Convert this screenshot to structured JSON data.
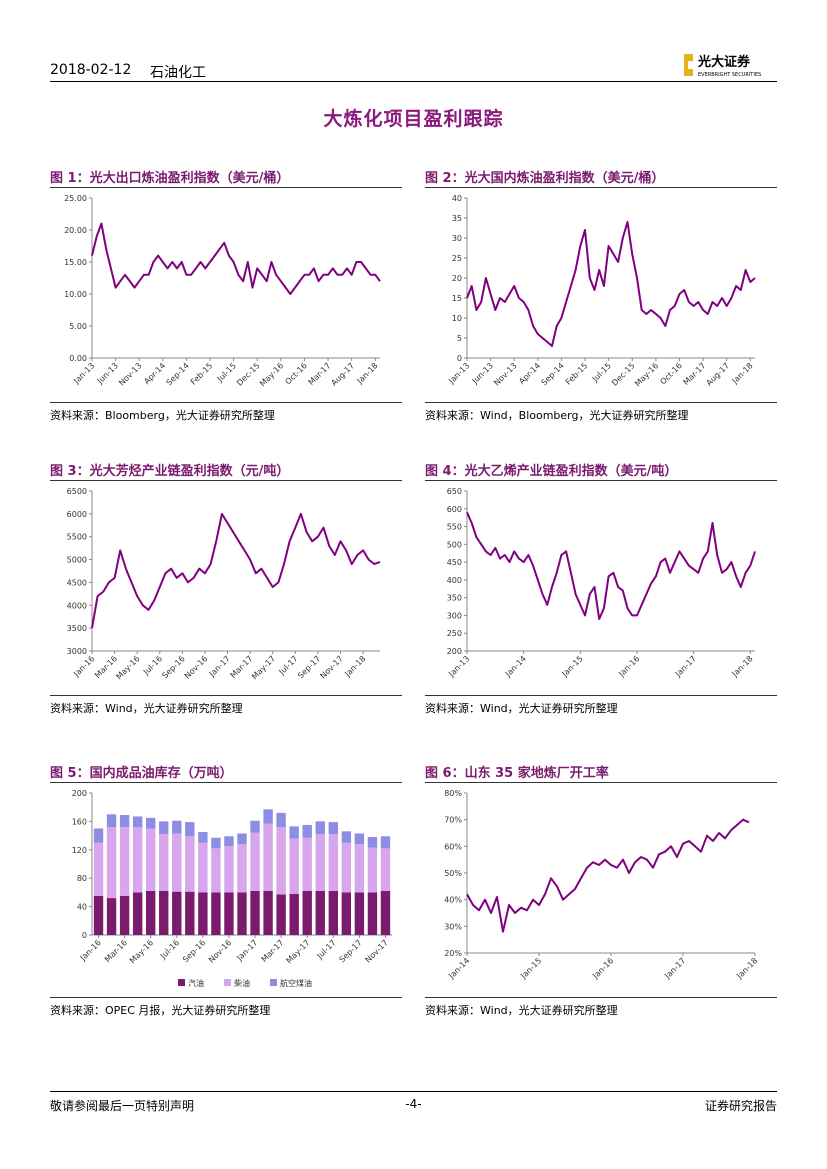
{
  "header": {
    "date": "2018-02-12",
    "sector": "石油化工",
    "logo_name": "光大证券",
    "logo_en": "EVERBRIGHT SECURITIES"
  },
  "title": "大炼化项目盈利跟踪",
  "figures": [
    {
      "caption": "图 1：光大出口炼油盈利指数（美元/桶）",
      "source": "资料来源：Bloomberg，光大证券研究所整理"
    },
    {
      "caption": "图 2：光大国内炼油盈利指数（美元/桶）",
      "source": "资料来源：Wind，Bloomberg，光大证券研究所整理"
    },
    {
      "caption": "图 3：光大芳烃产业链盈利指数（元/吨）",
      "source": "资料来源：Wind，光大证券研究所整理"
    },
    {
      "caption": "图 4：光大乙烯产业链盈利指数（美元/吨）",
      "source": "资料来源：Wind，光大证券研究所整理"
    },
    {
      "caption": "图 5：国内成品油库存（万吨）",
      "source": "资料来源：OPEC 月报，光大证券研究所整理"
    },
    {
      "caption": "图 6：山东 35 家地炼厂开工率",
      "source": "资料来源：Wind，光大证券研究所整理"
    }
  ],
  "chart_data": [
    {
      "type": "line",
      "color": "#800080",
      "categories": [
        "Jan-13",
        null,
        null,
        null,
        null,
        "Jun-13",
        null,
        null,
        null,
        null,
        "Nov-13",
        null,
        null,
        null,
        null,
        "Apr-14",
        null,
        null,
        null,
        null,
        "Sep-14",
        null,
        null,
        null,
        null,
        "Feb-15",
        null,
        null,
        null,
        null,
        "Jul-15",
        null,
        null,
        null,
        null,
        "Dec-15",
        null,
        null,
        null,
        null,
        "May-16",
        null,
        null,
        null,
        null,
        "Oct-16",
        null,
        null,
        null,
        null,
        "Mar-17",
        null,
        null,
        null,
        null,
        "Aug-17",
        null,
        null,
        null,
        null,
        "Jan-18",
        null
      ],
      "values": [
        16,
        19,
        21,
        17,
        14,
        11,
        12,
        13,
        12,
        11,
        12,
        13,
        13,
        15,
        16,
        15,
        14,
        15,
        14,
        15,
        13,
        13,
        14,
        15,
        14,
        15,
        16,
        17,
        18,
        16,
        15,
        13,
        12,
        15,
        11,
        14,
        13,
        12,
        15,
        13,
        12,
        11,
        10,
        11,
        12,
        13,
        13,
        14,
        12,
        13,
        13,
        14,
        13,
        13,
        14,
        13,
        15,
        15,
        14,
        13,
        13,
        12
      ],
      "ylim": [
        0,
        25
      ],
      "yticks": [
        {
          "value": 0,
          "label": "0.00"
        },
        {
          "value": 5,
          "label": "5.00"
        },
        {
          "value": 10,
          "label": "10.00"
        },
        {
          "value": 15,
          "label": "15.00"
        },
        {
          "value": 20,
          "label": "20.00"
        },
        {
          "value": 25,
          "label": "25.00"
        }
      ]
    },
    {
      "type": "line",
      "color": "#800080",
      "categories": [
        "Jan-13",
        null,
        null,
        null,
        null,
        "Jun-13",
        null,
        null,
        null,
        null,
        "Nov-13",
        null,
        null,
        null,
        null,
        "Apr-14",
        null,
        null,
        null,
        null,
        "Sep-14",
        null,
        null,
        null,
        null,
        "Feb-15",
        null,
        null,
        null,
        null,
        "Jul-15",
        null,
        null,
        null,
        null,
        "Dec-15",
        null,
        null,
        null,
        null,
        "May-16",
        null,
        null,
        null,
        null,
        "Oct-16",
        null,
        null,
        null,
        null,
        "Mar-17",
        null,
        null,
        null,
        null,
        "Aug-17",
        null,
        null,
        null,
        null,
        "Jan-18",
        null
      ],
      "values": [
        15,
        18,
        12,
        14,
        20,
        16,
        12,
        15,
        14,
        16,
        18,
        15,
        14,
        12,
        8,
        6,
        5,
        4,
        3,
        8,
        10,
        14,
        18,
        22,
        28,
        32,
        20,
        17,
        22,
        18,
        28,
        26,
        24,
        30,
        34,
        26,
        20,
        12,
        11,
        12,
        11,
        10,
        8,
        12,
        13,
        16,
        17,
        14,
        13,
        14,
        12,
        11,
        14,
        13,
        15,
        13,
        15,
        18,
        17,
        22,
        19,
        20
      ],
      "ylim": [
        0,
        40
      ],
      "yticks": [
        0,
        5,
        10,
        15,
        20,
        25,
        30,
        35,
        40
      ]
    },
    {
      "type": "line",
      "color": "#800080",
      "categories": [
        "Jan-16",
        null,
        null,
        null,
        "Mar-16",
        null,
        null,
        null,
        "May-16",
        null,
        null,
        null,
        "Jul-16",
        null,
        null,
        null,
        "Sep-16",
        null,
        null,
        null,
        "Nov-16",
        null,
        null,
        null,
        "Jan-17",
        null,
        null,
        null,
        "Mar-17",
        null,
        null,
        null,
        "May-17",
        null,
        null,
        null,
        "Jul-17",
        null,
        null,
        null,
        "Sep-17",
        null,
        null,
        null,
        "Nov-17",
        null,
        null,
        null,
        "Jan-18",
        null,
        null,
        null
      ],
      "values": [
        3500,
        4200,
        4300,
        4500,
        4600,
        5200,
        4800,
        4500,
        4200,
        4000,
        3900,
        4100,
        4400,
        4700,
        4800,
        4600,
        4700,
        4500,
        4600,
        4800,
        4700,
        4900,
        5400,
        6000,
        5800,
        5600,
        5400,
        5200,
        5000,
        4700,
        4800,
        4600,
        4400,
        4500,
        4900,
        5400,
        5700,
        6000,
        5600,
        5400,
        5500,
        5700,
        5300,
        5100,
        5400,
        5200,
        4900,
        5100,
        5200,
        5000,
        4900,
        4950
      ],
      "ylim": [
        3000,
        6500
      ],
      "yticks": [
        3000,
        3500,
        4000,
        4500,
        5000,
        5500,
        6000,
        6500
      ]
    },
    {
      "type": "line",
      "color": "#800080",
      "categories": [
        "Jan-13",
        null,
        null,
        null,
        null,
        null,
        null,
        null,
        null,
        null,
        null,
        null,
        "Jan-14",
        null,
        null,
        null,
        null,
        null,
        null,
        null,
        null,
        null,
        null,
        null,
        "Jan-15",
        null,
        null,
        null,
        null,
        null,
        null,
        null,
        null,
        null,
        null,
        null,
        "Jan-16",
        null,
        null,
        null,
        null,
        null,
        null,
        null,
        null,
        null,
        null,
        null,
        "Jan-17",
        null,
        null,
        null,
        null,
        null,
        null,
        null,
        null,
        null,
        null,
        null,
        "Jan-18",
        null
      ],
      "values": [
        590,
        560,
        520,
        500,
        480,
        470,
        490,
        460,
        470,
        450,
        480,
        460,
        450,
        470,
        440,
        400,
        360,
        330,
        380,
        420,
        470,
        480,
        420,
        360,
        330,
        300,
        360,
        380,
        290,
        320,
        410,
        420,
        380,
        370,
        320,
        300,
        300,
        330,
        360,
        390,
        410,
        450,
        460,
        420,
        450,
        480,
        460,
        440,
        430,
        420,
        460,
        480,
        560,
        470,
        420,
        430,
        450,
        410,
        380,
        420,
        440,
        480
      ],
      "ylim": [
        200,
        650
      ],
      "yticks": [
        200,
        250,
        300,
        350,
        400,
        450,
        500,
        550,
        600,
        650
      ]
    },
    {
      "type": "stacked_bar",
      "categories": [
        "Jan-16",
        null,
        "Mar-16",
        null,
        "May-16",
        null,
        "Jul-16",
        null,
        "Sep-16",
        null,
        "Nov-16",
        null,
        "Jan-17",
        null,
        "Mar-17",
        null,
        "May-17",
        null,
        "Jul-17",
        null,
        "Sep-17",
        null,
        "Nov-17"
      ],
      "series": [
        {
          "name": "汽油",
          "color": "#7b1b6e",
          "values": [
            55,
            52,
            55,
            60,
            62,
            62,
            61,
            61,
            60,
            60,
            60,
            60,
            62,
            62,
            57,
            58,
            62,
            62,
            62,
            60,
            60,
            60,
            62
          ]
        },
        {
          "name": "柴油",
          "color": "#d7a6ec",
          "values": [
            75,
            100,
            97,
            92,
            88,
            80,
            82,
            78,
            70,
            62,
            65,
            68,
            82,
            95,
            95,
            78,
            75,
            80,
            80,
            70,
            68,
            63,
            60
          ]
        },
        {
          "name": "航空煤油",
          "color": "#8e8de6",
          "values": [
            20,
            18,
            17,
            15,
            15,
            18,
            18,
            20,
            15,
            15,
            14,
            15,
            17,
            20,
            20,
            17,
            18,
            18,
            17,
            16,
            15,
            15,
            17
          ]
        }
      ],
      "ylim": [
        0,
        200
      ],
      "yticks": [
        0,
        40,
        80,
        120,
        160,
        200
      ],
      "legend": "bottom"
    },
    {
      "type": "line",
      "color": "#800080",
      "categories": [
        "Jan-14",
        null,
        null,
        null,
        null,
        null,
        null,
        null,
        null,
        null,
        null,
        null,
        "Jan-15",
        null,
        null,
        null,
        null,
        null,
        null,
        null,
        null,
        null,
        null,
        null,
        "Jan-16",
        null,
        null,
        null,
        null,
        null,
        null,
        null,
        null,
        null,
        null,
        null,
        "Jan-17",
        null,
        null,
        null,
        null,
        null,
        null,
        null,
        null,
        null,
        null,
        null,
        "Jan-18"
      ],
      "values": [
        42,
        38,
        36,
        40,
        35,
        41,
        28,
        38,
        35,
        37,
        36,
        40,
        38,
        42,
        48,
        45,
        40,
        42,
        44,
        48,
        52,
        54,
        53,
        55,
        53,
        52,
        55,
        50,
        54,
        56,
        55,
        52,
        57,
        58,
        60,
        56,
        61,
        62,
        60,
        58,
        64,
        62,
        65,
        63,
        66,
        68,
        70,
        69,
        null
      ],
      "ylim": [
        20,
        80
      ],
      "yticks": [
        {
          "value": 20,
          "label": "20%"
        },
        {
          "value": 30,
          "label": "30%"
        },
        {
          "value": 40,
          "label": "40%"
        },
        {
          "value": 50,
          "label": "50%"
        },
        {
          "value": 60,
          "label": "60%"
        },
        {
          "value": 70,
          "label": "70%"
        },
        {
          "value": 80,
          "label": "80%"
        }
      ]
    }
  ],
  "footer": {
    "disclaimer": "敬请参阅最后一页特别声明",
    "page": "-4-",
    "report_type": "证券研究报告"
  }
}
